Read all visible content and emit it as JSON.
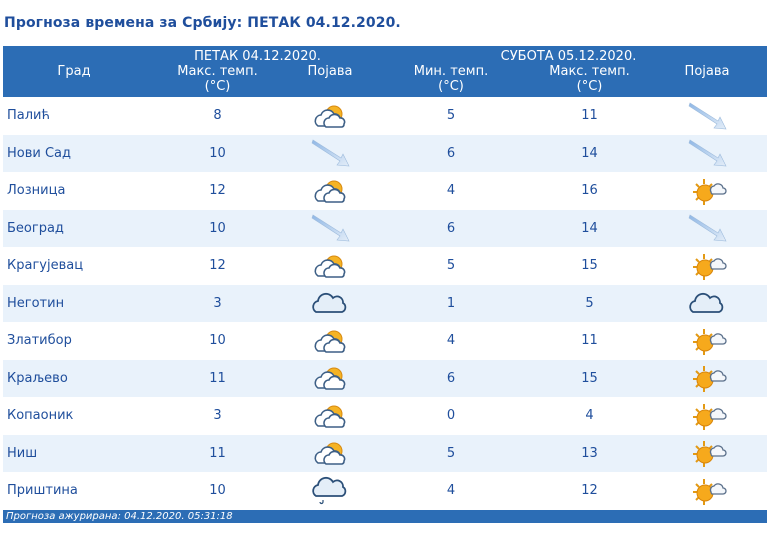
{
  "title": "Прогноза времена за Србију: ПЕТАК  04.12.2020.",
  "header": {
    "city": "Град",
    "day1": "ПЕТАК  04.12.2020.",
    "day2": "СУБОТА  05.12.2020.",
    "max_temp": "Макс. темп.",
    "min_temp": "Мин. темп.",
    "unit": "(°C)",
    "phenomenon": "Појава"
  },
  "rows": [
    {
      "city": "Палић",
      "max1": "8",
      "icon1": "partly-cloudy-icon",
      "min2": "5",
      "max2": "11",
      "icon2": "wind-arrow-icon"
    },
    {
      "city": "Нови Сад",
      "max1": "10",
      "icon1": "wind-arrow-icon",
      "min2": "6",
      "max2": "14",
      "icon2": "wind-arrow-icon"
    },
    {
      "city": "Лозница",
      "max1": "12",
      "icon1": "partly-cloudy-icon",
      "min2": "4",
      "max2": "16",
      "icon2": "sun-cloud-icon"
    },
    {
      "city": "Београд",
      "max1": "10",
      "icon1": "wind-arrow-icon",
      "min2": "6",
      "max2": "14",
      "icon2": "wind-arrow-icon"
    },
    {
      "city": "Крагујевац",
      "max1": "12",
      "icon1": "partly-cloudy-icon",
      "min2": "5",
      "max2": "15",
      "icon2": "sun-cloud-icon"
    },
    {
      "city": "Неготин",
      "max1": "3",
      "icon1": "cloud-icon",
      "min2": "1",
      "max2": "5",
      "icon2": "cloud-icon"
    },
    {
      "city": "Златибор",
      "max1": "10",
      "icon1": "partly-cloudy-icon",
      "min2": "4",
      "max2": "11",
      "icon2": "sun-cloud-icon"
    },
    {
      "city": "Краљево",
      "max1": "11",
      "icon1": "partly-cloudy-icon",
      "min2": "6",
      "max2": "15",
      "icon2": "sun-cloud-icon"
    },
    {
      "city": "Копаоник",
      "max1": "3",
      "icon1": "partly-cloudy-icon",
      "min2": "0",
      "max2": "4",
      "icon2": "sun-cloud-icon"
    },
    {
      "city": "Ниш",
      "max1": "11",
      "icon1": "partly-cloudy-icon",
      "min2": "5",
      "max2": "13",
      "icon2": "sun-cloud-icon"
    },
    {
      "city": "Приштина",
      "max1": "10",
      "icon1": "cloud-drizzle-icon",
      "min2": "4",
      "max2": "12",
      "icon2": "sun-cloud-icon"
    }
  ],
  "footer": "Прогноза ажурирана:  04.12.2020. 05:31:18",
  "colors": {
    "header_bg": "#2c6db5",
    "text": "#1f4e9c",
    "row_alt": "#e9f2fb"
  }
}
